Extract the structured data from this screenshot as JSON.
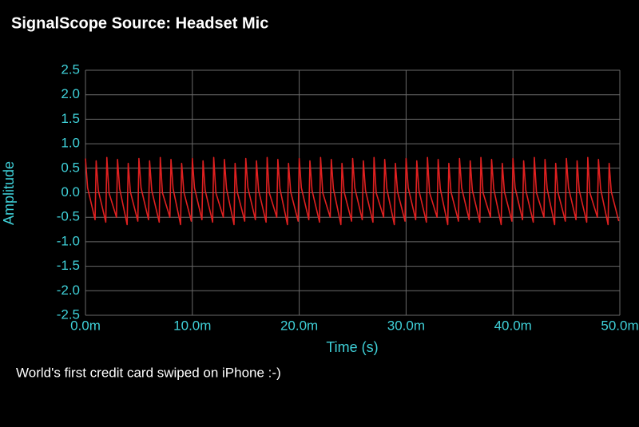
{
  "chart_data": {
    "type": "line",
    "title": "SignalScope Source:  Headset Mic",
    "x_label": "Time (s)",
    "y_label": "Amplitude",
    "annotation": "World's first credit card swiped on iPhone :-)",
    "color": "#e02020",
    "grid": true,
    "xlim": [
      0,
      0.05
    ],
    "xticks": [
      {
        "value": 0,
        "label": "0.0m"
      },
      {
        "value": 0.01,
        "label": "10.0m"
      },
      {
        "value": 0.02,
        "label": "20.0m"
      },
      {
        "value": 0.03,
        "label": "30.0m"
      },
      {
        "value": 0.04,
        "label": "40.0m"
      },
      {
        "value": 0.05,
        "label": "50.0m"
      }
    ],
    "ylim": [
      -2.5,
      2.5
    ],
    "yticks": [
      2.5,
      {
        "value": 2,
        "label": "2.0"
      },
      1.5,
      {
        "value": 1,
        "label": "1.0"
      },
      0.5,
      {
        "value": 0,
        "label": "0.0"
      },
      -0.5,
      {
        "value": -1,
        "label": "-1.0"
      },
      -1.5,
      {
        "value": -2,
        "label": "-2.0"
      },
      -2.5
    ],
    "x": [
      0,
      0.0002,
      0.0009,
      0.001,
      0.0012,
      0.0019,
      0.002,
      0.0022,
      0.0029,
      0.003,
      0.0032,
      0.0039,
      0.004,
      0.0042,
      0.0049,
      0.005,
      0.0052,
      0.0059,
      0.006,
      0.0062,
      0.0069,
      0.007,
      0.0072,
      0.0079,
      0.008,
      0.0082,
      0.0089,
      0.009,
      0.0092,
      0.0099,
      0.01,
      0.0102,
      0.0109,
      0.011,
      0.0112,
      0.0119,
      0.012,
      0.0122,
      0.0129,
      0.013,
      0.0132,
      0.0139,
      0.014,
      0.0142,
      0.0149,
      0.015,
      0.0152,
      0.0159,
      0.016,
      0.0162,
      0.0169,
      0.017,
      0.0172,
      0.0179,
      0.018,
      0.0182,
      0.0189,
      0.019,
      0.0192,
      0.0199,
      0.02,
      0.0202,
      0.0209,
      0.021,
      0.0212,
      0.0219,
      0.022,
      0.0222,
      0.0229,
      0.023,
      0.0232,
      0.0239,
      0.024,
      0.0242,
      0.0249,
      0.025,
      0.0252,
      0.0259,
      0.026,
      0.0262,
      0.0269,
      0.027,
      0.0272,
      0.0279,
      0.028,
      0.0282,
      0.0289,
      0.029,
      0.0292,
      0.0299,
      0.03,
      0.0302,
      0.0309,
      0.031,
      0.0312,
      0.0319,
      0.032,
      0.0322,
      0.0329,
      0.033,
      0.0332,
      0.0339,
      0.034,
      0.0342,
      0.0349,
      0.035,
      0.0352,
      0.0359,
      0.036,
      0.0362,
      0.0369,
      0.037,
      0.0372,
      0.0379,
      0.038,
      0.0382,
      0.0389,
      0.039,
      0.0392,
      0.0399,
      0.04,
      0.0402,
      0.0409,
      0.041,
      0.0412,
      0.0419,
      0.042,
      0.0422,
      0.0429,
      0.043,
      0.0432,
      0.0439,
      0.044,
      0.0442,
      0.0449,
      0.045,
      0.0452,
      0.0459,
      0.046,
      0.0462,
      0.0469,
      0.047,
      0.0472,
      0.0479,
      0.048,
      0.0482,
      0.0489,
      0.049,
      0.0492,
      0.0499
    ],
    "values": [
      0.7,
      0.1,
      -0.55,
      0.65,
      0.05,
      -0.6,
      0.72,
      0.0,
      -0.5,
      0.68,
      0.08,
      -0.65,
      0.6,
      0.02,
      -0.58,
      0.7,
      0.1,
      -0.55,
      0.65,
      0.05,
      -0.6,
      0.72,
      0.0,
      -0.5,
      0.68,
      0.08,
      -0.65,
      0.6,
      0.02,
      -0.58,
      0.7,
      0.1,
      -0.55,
      0.65,
      0.05,
      -0.6,
      0.72,
      0.0,
      -0.5,
      0.68,
      0.08,
      -0.65,
      0.6,
      0.02,
      -0.58,
      0.7,
      0.1,
      -0.55,
      0.65,
      0.05,
      -0.6,
      0.72,
      0.0,
      -0.5,
      0.68,
      0.08,
      -0.65,
      0.6,
      0.02,
      -0.58,
      0.7,
      0.1,
      -0.55,
      0.65,
      0.05,
      -0.6,
      0.72,
      0.0,
      -0.5,
      0.68,
      0.08,
      -0.65,
      0.6,
      0.02,
      -0.58,
      0.7,
      0.1,
      -0.55,
      0.65,
      0.05,
      -0.6,
      0.72,
      0.0,
      -0.5,
      0.68,
      0.08,
      -0.65,
      0.6,
      0.02,
      -0.58,
      0.7,
      0.1,
      -0.55,
      0.65,
      0.05,
      -0.6,
      0.72,
      0.0,
      -0.5,
      0.68,
      0.08,
      -0.65,
      0.6,
      0.02,
      -0.58,
      0.7,
      0.1,
      -0.55,
      0.65,
      0.05,
      -0.6,
      0.72,
      0.0,
      -0.5,
      0.68,
      0.08,
      -0.65,
      0.6,
      0.02,
      -0.58,
      0.7,
      0.1,
      -0.55,
      0.65,
      0.05,
      -0.6,
      0.72,
      0.0,
      -0.5,
      0.68,
      0.08,
      -0.65,
      0.6,
      0.02,
      -0.58,
      0.7,
      0.1,
      -0.55,
      0.65,
      0.05,
      -0.6,
      0.72,
      0.0,
      -0.5,
      0.68,
      0.08,
      -0.65,
      0.6,
      0.02,
      -0.58
    ]
  }
}
